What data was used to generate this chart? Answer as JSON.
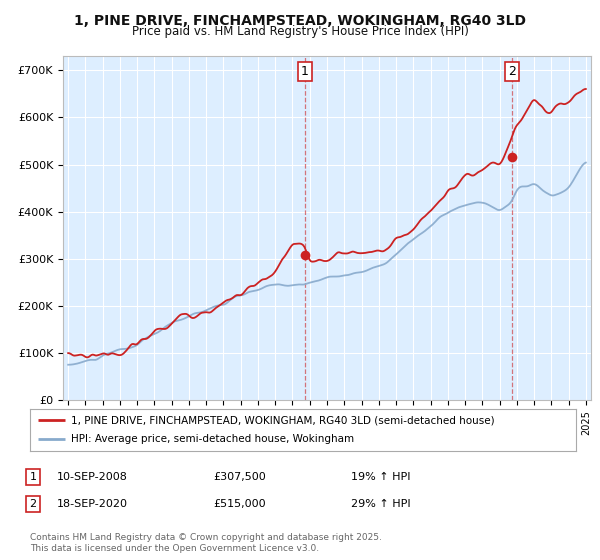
{
  "title_line1": "1, PINE DRIVE, FINCHAMPSTEAD, WOKINGHAM, RG40 3LD",
  "title_line2": "Price paid vs. HM Land Registry's House Price Index (HPI)",
  "background_color": "#ffffff",
  "plot_bg_color": "#ddeeff",
  "grid_color": "#ffffff",
  "red_color": "#cc2222",
  "blue_color": "#88aacc",
  "sale_marker_color": "#cc2222",
  "ylim_min": 0,
  "ylim_max": 730000,
  "ytick_values": [
    0,
    100000,
    200000,
    300000,
    400000,
    500000,
    600000,
    700000
  ],
  "ytick_labels": [
    "£0",
    "£100K",
    "£200K",
    "£300K",
    "£400K",
    "£500K",
    "£600K",
    "£700K"
  ],
  "xstart_year": 1995,
  "xend_year": 2025,
  "sale1_year": 2008.7,
  "sale2_year": 2020.7,
  "sale1_price": 307500,
  "sale2_price": 515000,
  "sale1_date_label": "10-SEP-2008",
  "sale2_date_label": "18-SEP-2020",
  "sale1_hpi_pct": "19% ↑ HPI",
  "sale2_hpi_pct": "29% ↑ HPI",
  "legend_line1": "1, PINE DRIVE, FINCHAMPSTEAD, WOKINGHAM, RG40 3LD (semi-detached house)",
  "legend_line2": "HPI: Average price, semi-detached house, Wokingham",
  "footer": "Contains HM Land Registry data © Crown copyright and database right 2025.\nThis data is licensed under the Open Government Licence v3.0."
}
